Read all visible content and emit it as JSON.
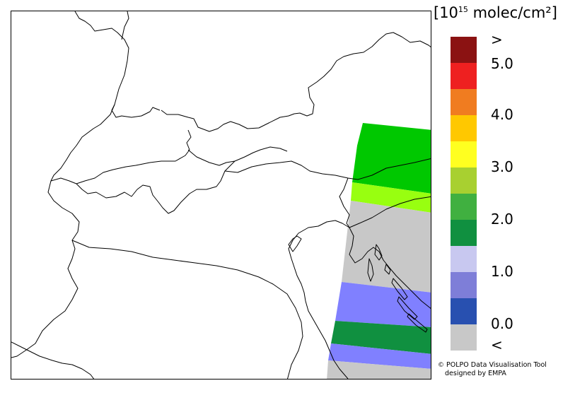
{
  "unit": {
    "prefix": "[10",
    "exponent": "15",
    "suffix": " molec/cm²]"
  },
  "legend": {
    "colors": [
      "#8b1212",
      "#ee2020",
      "#f07c20",
      "#ffc800",
      "#ffff20",
      "#a8d030",
      "#40b040",
      "#109040",
      "#c8c8f0",
      "#7e7ed8",
      "#2850b0",
      "#c8c8c8"
    ],
    "ticks": [
      ">",
      "5.0",
      "4.0",
      "3.0",
      "2.0",
      "1.0",
      "0.0",
      "<"
    ]
  },
  "credit": {
    "symbol": "©",
    "line1": "POLPO Data Visualisation Tool",
    "line2": "designed by EMPA"
  },
  "swaths": [
    {
      "band": "3.0–3.5",
      "color": "#00c800"
    },
    {
      "band": "2.5–3.0",
      "color": "#98ff10"
    },
    {
      "band": "below range",
      "color": "#c8c8c8"
    },
    {
      "band": "0.5–1.0",
      "color": "#8080ff"
    },
    {
      "band": "2.0–2.5",
      "color": "#109040"
    },
    {
      "band": "0.5–1.0",
      "color": "#8080ff"
    },
    {
      "band": "below range",
      "color": "#c8c8c8"
    }
  ]
}
